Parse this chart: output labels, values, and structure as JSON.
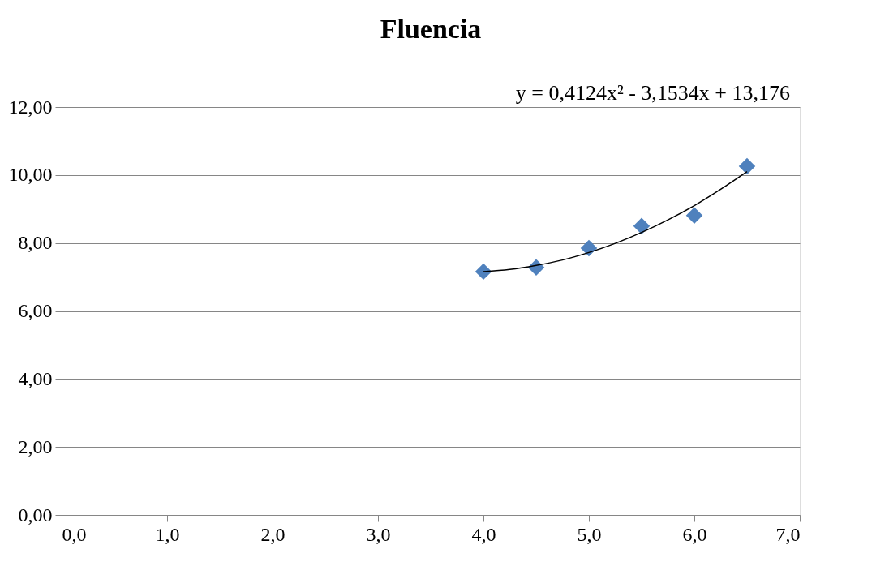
{
  "chart_data": {
    "type": "scatter",
    "title": "Fluencia",
    "annotations": [
      "y = 0,4124x² - 3,1534x + 13,176"
    ],
    "series": [
      {
        "color": "#4f81bd",
        "marker": "diamond",
        "x": [
          4.0,
          4.5,
          5.0,
          5.5,
          6.0,
          6.5
        ],
        "values": [
          7.16,
          7.28,
          7.85,
          8.5,
          8.81,
          10.26
        ]
      },
      {
        "type": "line",
        "color": "#000000",
        "marker": "none",
        "x": [
          4.0,
          4.25,
          4.5,
          4.75,
          5.0,
          5.25,
          5.5,
          5.75,
          6.0,
          6.25,
          6.5
        ],
        "values": [
          7.16,
          7.22,
          7.34,
          7.5,
          7.72,
          7.99,
          8.31,
          8.68,
          9.1,
          9.58,
          10.1
        ]
      }
    ],
    "xlim": [
      0,
      7
    ],
    "ylim": [
      0,
      12
    ],
    "xticks": [
      {
        "value": 0,
        "label": "0,0"
      },
      {
        "value": 1,
        "label": "1,0"
      },
      {
        "value": 2,
        "label": "2,0"
      },
      {
        "value": 3,
        "label": "3,0"
      },
      {
        "value": 4,
        "label": "4,0"
      },
      {
        "value": 5,
        "label": "5,0"
      },
      {
        "value": 6,
        "label": "6,0"
      },
      {
        "value": 7,
        "label": "7,0"
      }
    ],
    "yticks": [
      {
        "value": 0,
        "label": "0,00"
      },
      {
        "value": 2,
        "label": "2,00"
      },
      {
        "value": 4,
        "label": "4,00"
      },
      {
        "value": 6,
        "label": "6,00"
      },
      {
        "value": 8,
        "label": "8,00"
      },
      {
        "value": 10,
        "label": "10,00"
      },
      {
        "value": 12,
        "label": "12,00"
      }
    ],
    "grid": "y"
  }
}
